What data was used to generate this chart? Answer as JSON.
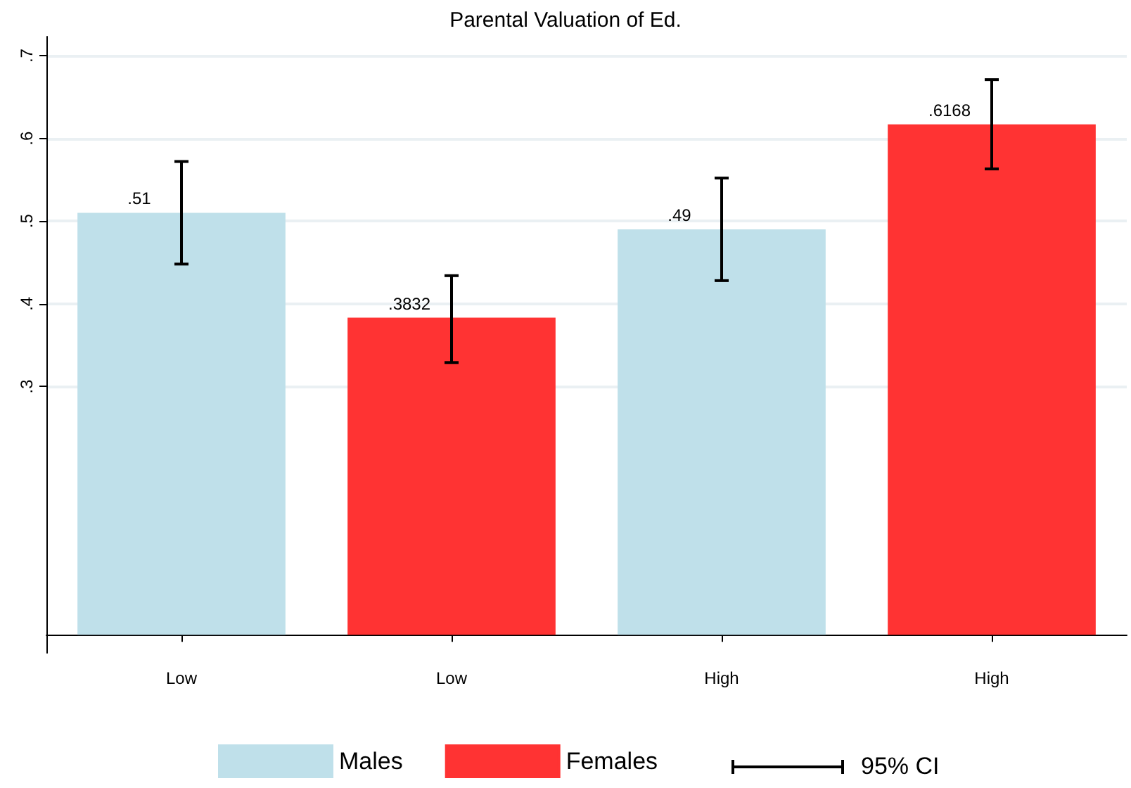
{
  "chart_data": {
    "type": "bar",
    "title": "Parental Valuation of Ed.",
    "categories": [
      "Low",
      "Low",
      "High",
      "High"
    ],
    "series": [
      {
        "name": "Males",
        "color": "#bfe0ea",
        "values": [
          0.51,
          null,
          0.49,
          null
        ],
        "value_labels": [
          ".51",
          null,
          ".49",
          null
        ],
        "errors": [
          [
            0.448,
            0.572
          ],
          null,
          [
            0.428,
            0.552
          ],
          null
        ]
      },
      {
        "name": "Females",
        "color": "#ff3333",
        "values": [
          null,
          0.3832,
          null,
          0.6168
        ],
        "value_labels": [
          null,
          ".3832",
          null,
          ".6168"
        ],
        "errors": [
          null,
          [
            0.329,
            0.434
          ],
          null,
          [
            0.563,
            0.671
          ]
        ]
      }
    ],
    "ylim": [
      -0.022,
      0.723
    ],
    "yticks": [
      {
        "value": 0.3,
        "label": ".3"
      },
      {
        "value": 0.4,
        "label": ".4"
      },
      {
        "value": 0.5,
        "label": ".5"
      },
      {
        "value": 0.6,
        "label": ".6"
      },
      {
        "value": 0.7,
        "label": ".7"
      }
    ],
    "grid": "y",
    "legend": "bottom",
    "annotations": [
      "95% CI"
    ]
  }
}
